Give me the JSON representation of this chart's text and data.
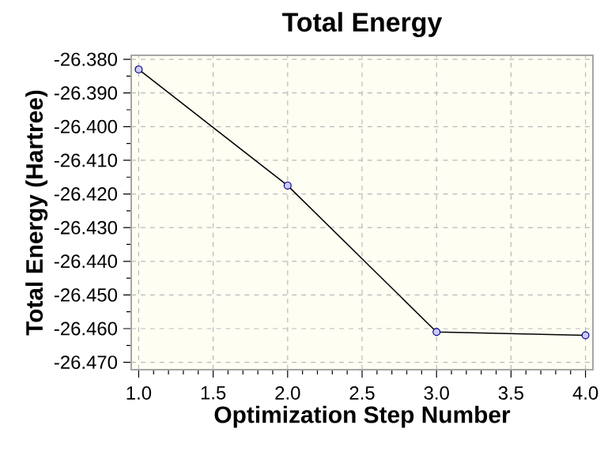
{
  "chart_data": {
    "type": "line",
    "title": "Total Energy",
    "xlabel": "Optimization Step Number",
    "ylabel": "Total Energy (Hartree)",
    "x": [
      1,
      2,
      3,
      4
    ],
    "series": [
      {
        "color": "#000000",
        "values": [
          -26.383,
          -26.4175,
          -26.461,
          -26.462
        ]
      }
    ],
    "xlim": [
      0.95,
      4.05
    ],
    "xticks": [
      {
        "value": 1,
        "label": "1.0"
      },
      {
        "value": 1.5,
        "label": "1.5"
      },
      {
        "value": 2,
        "label": "2.0"
      },
      {
        "value": 2.5,
        "label": "2.5"
      },
      {
        "value": 3,
        "label": "3.0"
      },
      {
        "value": 3.5,
        "label": "3.5"
      },
      {
        "value": 4,
        "label": "4.0"
      }
    ],
    "ylim": [
      -26.4722,
      -26.3788
    ],
    "yticks": [
      {
        "value": -26.38,
        "label": "-26.380"
      },
      {
        "value": -26.39,
        "label": "-26.390"
      },
      {
        "value": -26.4,
        "label": "-26.400"
      },
      {
        "value": -26.41,
        "label": "-26.410"
      },
      {
        "value": -26.42,
        "label": "-26.420"
      },
      {
        "value": -26.43,
        "label": "-26.430"
      },
      {
        "value": -26.44,
        "label": "-26.440"
      },
      {
        "value": -26.45,
        "label": "-26.450"
      },
      {
        "value": -26.46,
        "label": "-26.460"
      },
      {
        "value": -26.47,
        "label": "-26.470"
      }
    ],
    "grid": true,
    "marker": "circle",
    "line_style": "solid"
  }
}
